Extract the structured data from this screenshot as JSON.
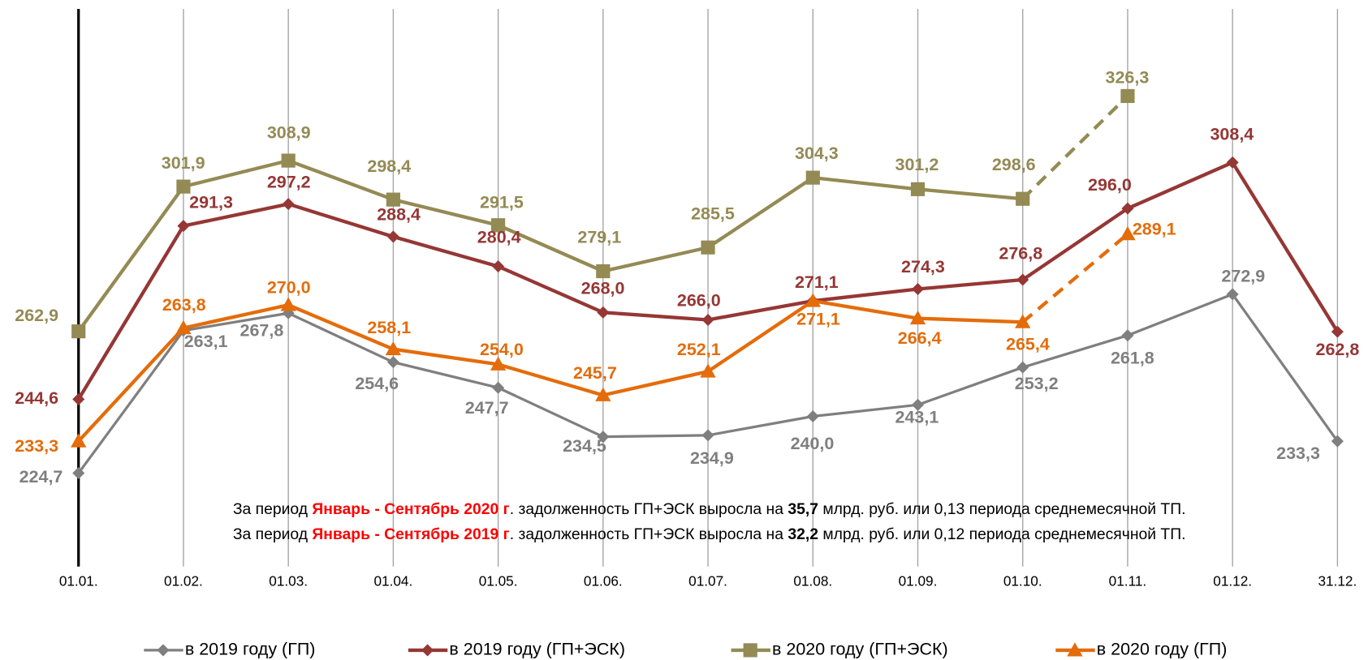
{
  "chart_data": {
    "type": "line",
    "categories": [
      "01.01.",
      "01.02.",
      "01.03.",
      "01.04.",
      "01.05.",
      "01.06.",
      "01.07.",
      "01.08.",
      "01.09.",
      "01.10.",
      "01.11.",
      "01.12.",
      "31.12."
    ],
    "ylim": [
      200,
      350
    ],
    "grid": true,
    "legend": "bottom",
    "series": [
      {
        "name": "в 2019 году (ГП)",
        "color": "#7f7f7f",
        "marker": "diamond",
        "values": [
          224.7,
          263.1,
          267.8,
          254.6,
          247.7,
          234.5,
          234.9,
          240.0,
          243.1,
          253.2,
          261.8,
          272.9,
          233.3
        ],
        "value_labels": [
          "224,7",
          "263,1",
          "267,8",
          "254,6",
          "247,7",
          "234,5",
          "234,9",
          "240,0",
          "243,1",
          "253,2",
          "261,8",
          "272,9",
          "233,3"
        ]
      },
      {
        "name": "в 2019 году (ГП+ЭСК)",
        "color": "#953735",
        "marker": "diamond",
        "values": [
          244.6,
          291.3,
          297.2,
          288.4,
          280.4,
          268.0,
          266.0,
          271.1,
          274.3,
          276.8,
          296.0,
          308.4,
          262.8
        ],
        "value_labels": [
          "244,6",
          "291,3",
          "297,2",
          "288,4",
          "280,4",
          "268,0",
          "266,0",
          "271,1",
          "274,3",
          "276,8",
          "296,0",
          "308,4",
          "262,8"
        ]
      },
      {
        "name": "в 2020 году (ГП+ЭСК)",
        "color": "#948a54",
        "marker": "square",
        "last_segment_style": "dashed",
        "values": [
          262.9,
          301.9,
          308.9,
          298.4,
          291.5,
          279.1,
          285.5,
          304.3,
          301.2,
          298.6,
          326.3,
          null,
          null
        ],
        "value_labels": [
          "262,9",
          "301,9",
          "308,9",
          "298,4",
          "291,5",
          "279,1",
          "285,5",
          "304,3",
          "301,2",
          "298,6",
          "326,3",
          null,
          null
        ]
      },
      {
        "name": "в 2020 году (ГП)",
        "color": "#e46c0a",
        "marker": "triangle",
        "last_segment_style": "dashed",
        "values": [
          233.3,
          263.8,
          270.0,
          258.1,
          254.0,
          245.7,
          252.1,
          271.1,
          266.4,
          265.4,
          289.1,
          null,
          null
        ],
        "value_labels": [
          "233,3",
          "263,8",
          "270,0",
          "258,1",
          "254,0",
          "245,7",
          "252,1",
          "271,1",
          "266,4",
          "265,4",
          "289,1",
          null,
          null
        ]
      }
    ],
    "annotations": [
      [
        "За период ",
        "Январь - Сентябрь 2020 г",
        ". задолженность ГП+ЭСК выросла на ",
        "35,7",
        " млрд. руб. или 0,13 периода среднемесячной ТП."
      ],
      [
        "За период ",
        "Январь - Сентябрь 2019 г",
        ". задолженность ГП+ЭСК выросла на ",
        "32,2",
        " млрд. руб. или 0,12 периода среднемесячной ТП."
      ]
    ]
  }
}
